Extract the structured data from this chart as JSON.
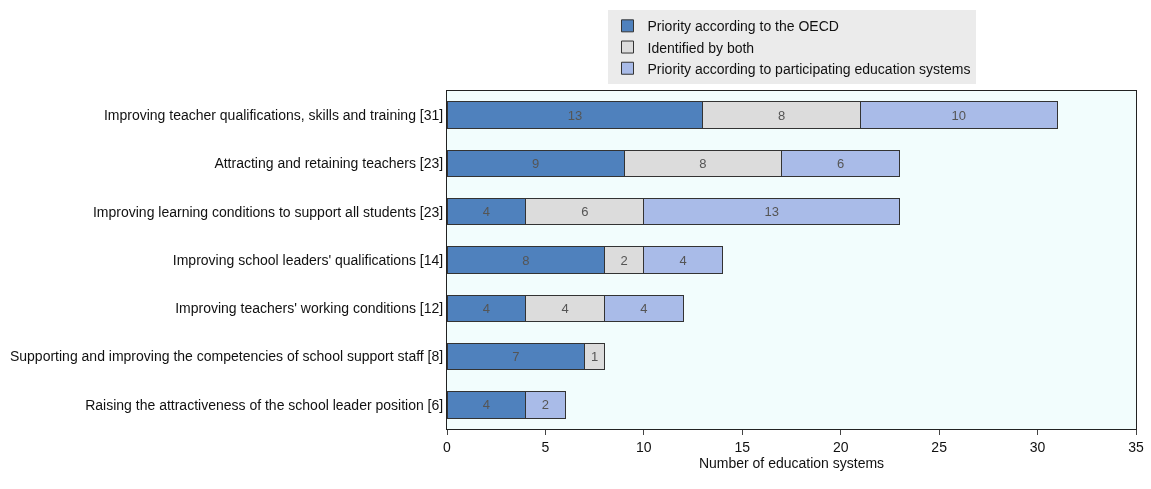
{
  "chart_data": {
    "type": "bar",
    "orientation": "horizontal",
    "stacked": true,
    "xlabel": "Number of education systems",
    "categories": [
      "Improving teacher qualifications, skills and training [31]",
      "Attracting and retaining teachers [23]",
      "Improving learning conditions to support all students [23]",
      "Improving school leaders' qualifications [14]",
      "Improving teachers' working conditions [12]",
      "Supporting and improving the competencies of school support staff [8]",
      "Raising the attractiveness of the school leader position [6]"
    ],
    "series": [
      {
        "name": "Priority according to the OECD",
        "color": "#4f81bd",
        "values": [
          13,
          9,
          4,
          8,
          4,
          7,
          4
        ]
      },
      {
        "name": "Identified by both",
        "color": "#dcdcdc",
        "values": [
          8,
          8,
          6,
          2,
          4,
          1,
          null
        ]
      },
      {
        "name": "Priority according to participating education systems",
        "color": "#a9bbe8",
        "values": [
          10,
          6,
          13,
          4,
          4,
          null,
          2
        ]
      }
    ],
    "xlim": [
      0,
      35
    ],
    "xticks": [
      0,
      5,
      10,
      15,
      20,
      25,
      30,
      35
    ],
    "grid": false,
    "legend": "top",
    "data_labels": true
  }
}
